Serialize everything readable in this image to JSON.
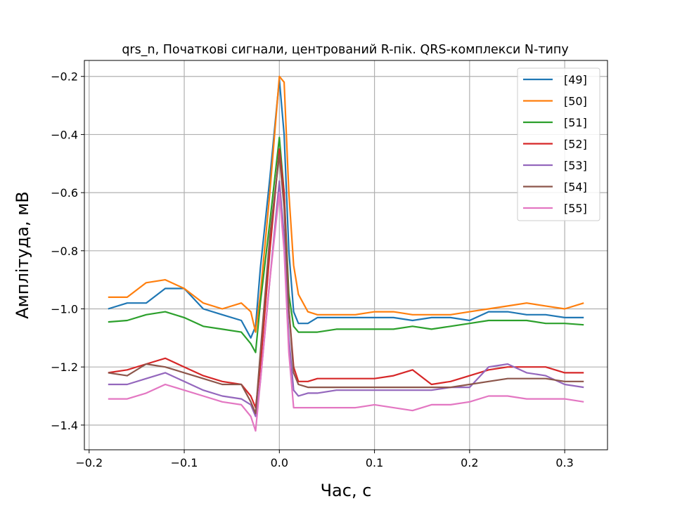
{
  "chart_data": {
    "type": "line",
    "title": "qrs_n, Початкові сигнали, центрований R-пік. QRS-комплекси N-типу",
    "xlabel": "Час, с",
    "ylabel": "Амплітуда, мВ",
    "xlim": [
      -0.205,
      0.345
    ],
    "ylim": [
      -1.485,
      -0.145
    ],
    "xticks": [
      -0.2,
      -0.1,
      0.0,
      0.1,
      0.2,
      0.3
    ],
    "xtick_labels": [
      "−0.2",
      "−0.1",
      "0.0",
      "0.1",
      "0.2",
      "0.3"
    ],
    "yticks": [
      -1.4,
      -1.2,
      -1.0,
      -0.8,
      -0.6,
      -0.4,
      -0.2
    ],
    "ytick_labels": [
      "−1.4",
      "−1.2",
      "−1.0",
      "−0.8",
      "−0.6",
      "−0.4",
      "−0.2"
    ],
    "grid": true,
    "legend_position": "top-right",
    "x": [
      -0.18,
      -0.16,
      -0.14,
      -0.12,
      -0.1,
      -0.08,
      -0.06,
      -0.04,
      -0.03,
      -0.025,
      -0.02,
      -0.01,
      0.0,
      0.005,
      0.01,
      0.015,
      0.02,
      0.03,
      0.04,
      0.06,
      0.08,
      0.1,
      0.12,
      0.14,
      0.16,
      0.18,
      0.2,
      0.22,
      0.24,
      0.26,
      0.28,
      0.3,
      0.32
    ],
    "series": [
      {
        "name": "[49]",
        "color": "#1f77b4",
        "values": [
          -1.0,
          -0.98,
          -0.98,
          -0.93,
          -0.93,
          -1.0,
          -1.02,
          -1.04,
          -1.1,
          -1.06,
          -0.86,
          -0.55,
          -0.21,
          -0.4,
          -0.8,
          -1.01,
          -1.05,
          -1.05,
          -1.03,
          -1.03,
          -1.03,
          -1.03,
          -1.03,
          -1.04,
          -1.03,
          -1.03,
          -1.04,
          -1.01,
          -1.01,
          -1.02,
          -1.02,
          -1.03,
          -1.03
        ]
      },
      {
        "name": "[50]",
        "color": "#ff7f0e",
        "values": [
          -0.96,
          -0.96,
          -0.91,
          -0.9,
          -0.93,
          -0.98,
          -1.0,
          -0.98,
          -1.01,
          -1.08,
          -0.95,
          -0.6,
          -0.2,
          -0.22,
          -0.6,
          -0.85,
          -0.95,
          -1.01,
          -1.02,
          -1.02,
          -1.02,
          -1.01,
          -1.01,
          -1.02,
          -1.02,
          -1.02,
          -1.01,
          -1.0,
          -0.99,
          -0.98,
          -0.99,
          -1.0,
          -0.98
        ]
      },
      {
        "name": "[51]",
        "color": "#2ca02c",
        "values": [
          -1.045,
          -1.04,
          -1.02,
          -1.01,
          -1.03,
          -1.06,
          -1.07,
          -1.08,
          -1.12,
          -1.15,
          -0.98,
          -0.7,
          -0.41,
          -0.6,
          -0.95,
          -1.06,
          -1.08,
          -1.08,
          -1.08,
          -1.07,
          -1.07,
          -1.07,
          -1.07,
          -1.06,
          -1.07,
          -1.06,
          -1.05,
          -1.04,
          -1.04,
          -1.04,
          -1.05,
          -1.05,
          -1.055
        ]
      },
      {
        "name": "[52]",
        "color": "#d62728",
        "values": [
          -1.22,
          -1.21,
          -1.19,
          -1.17,
          -1.2,
          -1.23,
          -1.25,
          -1.26,
          -1.3,
          -1.34,
          -1.2,
          -0.8,
          -0.45,
          -0.6,
          -1.0,
          -1.2,
          -1.25,
          -1.25,
          -1.24,
          -1.24,
          -1.24,
          -1.24,
          -1.23,
          -1.21,
          -1.26,
          -1.25,
          -1.23,
          -1.21,
          -1.2,
          -1.2,
          -1.2,
          -1.22,
          -1.22
        ]
      },
      {
        "name": "[53]",
        "color": "#9467bd",
        "values": [
          -1.26,
          -1.26,
          -1.24,
          -1.22,
          -1.25,
          -1.28,
          -1.3,
          -1.31,
          -1.33,
          -1.37,
          -1.25,
          -0.9,
          -0.56,
          -0.75,
          -1.1,
          -1.28,
          -1.3,
          -1.29,
          -1.29,
          -1.28,
          -1.28,
          -1.28,
          -1.28,
          -1.28,
          -1.28,
          -1.27,
          -1.27,
          -1.2,
          -1.19,
          -1.22,
          -1.23,
          -1.26,
          -1.27
        ]
      },
      {
        "name": "[54]",
        "color": "#8c564b",
        "values": [
          -1.22,
          -1.23,
          -1.19,
          -1.2,
          -1.22,
          -1.24,
          -1.26,
          -1.26,
          -1.32,
          -1.36,
          -1.15,
          -0.75,
          -0.47,
          -0.65,
          -1.0,
          -1.22,
          -1.26,
          -1.27,
          -1.27,
          -1.27,
          -1.27,
          -1.27,
          -1.27,
          -1.27,
          -1.27,
          -1.27,
          -1.26,
          -1.25,
          -1.24,
          -1.24,
          -1.24,
          -1.25,
          -1.25
        ]
      },
      {
        "name": "[55]",
        "color": "#e377c2",
        "values": [
          -1.31,
          -1.31,
          -1.29,
          -1.26,
          -1.28,
          -1.3,
          -1.32,
          -1.33,
          -1.37,
          -1.42,
          -1.25,
          -0.9,
          -0.6,
          -0.8,
          -1.15,
          -1.34,
          -1.34,
          -1.34,
          -1.34,
          -1.34,
          -1.34,
          -1.33,
          -1.34,
          -1.35,
          -1.33,
          -1.33,
          -1.32,
          -1.3,
          -1.3,
          -1.31,
          -1.31,
          -1.31,
          -1.32
        ]
      }
    ]
  }
}
